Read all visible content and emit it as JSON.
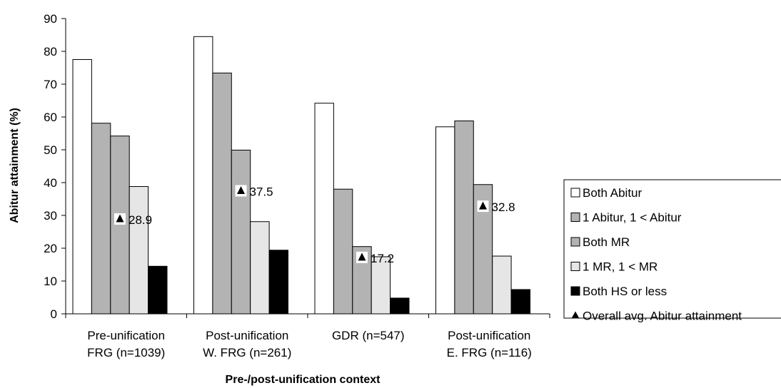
{
  "chart_data": {
    "type": "bar",
    "xlabel": "Pre-/post-unification context",
    "ylabel": "Abitur attainment (%)",
    "ylim": [
      0,
      90
    ],
    "yticks": [
      0,
      10,
      20,
      30,
      40,
      50,
      60,
      70,
      80,
      90
    ],
    "grid": false,
    "legend_position": "right",
    "categories": [
      [
        "Pre-unification",
        "FRG (n=1039)"
      ],
      [
        "Post-unification",
        "W. FRG (n=261)"
      ],
      [
        "GDR (n=547)"
      ],
      [
        "Post-unification",
        "E. FRG (n=116)"
      ]
    ],
    "series": [
      {
        "name": "Both Abitur",
        "color": "#ffffff",
        "values": [
          77.5,
          84.5,
          64.2,
          57.0
        ]
      },
      {
        "name": "1 Abitur, 1 < Abitur",
        "color": "#b3b3b3",
        "values": [
          58.1,
          73.4,
          38.0,
          58.8
        ]
      },
      {
        "name": "Both MR",
        "color": "#b3b3b3",
        "values": [
          54.2,
          49.9,
          20.5,
          39.4
        ]
      },
      {
        "name": "1 MR, 1 < MR",
        "color": "#e6e6e6",
        "values": [
          38.8,
          28.1,
          17.4,
          17.6
        ]
      },
      {
        "name": "Both HS or less",
        "color": "#000000",
        "values": [
          14.5,
          19.4,
          4.8,
          7.4
        ]
      }
    ],
    "overlay": {
      "name": "Overall avg. Abitur attainment",
      "marker": "triangle",
      "values": [
        28.9,
        37.5,
        17.2,
        32.8
      ],
      "labels": [
        "28.9",
        "37.5",
        "17.2",
        "32.8"
      ]
    }
  }
}
